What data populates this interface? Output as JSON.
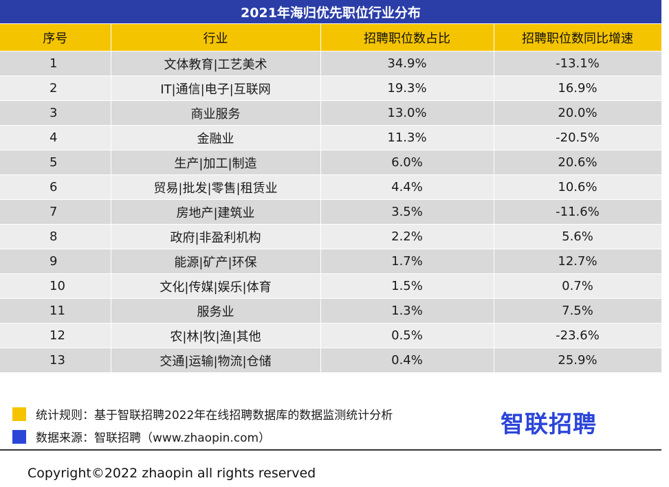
{
  "title": "2021年海归优先职位行业分布",
  "chart_data": {
    "type": "table",
    "title": "2021年海归优先职位行业分布",
    "columns": [
      "序号",
      "行业",
      "招聘职位数占比",
      "招聘职位数同比增速"
    ],
    "rows": [
      {
        "no": "1",
        "industry": "文体教育|工艺美术",
        "share": "34.9%",
        "growth": "-13.1%"
      },
      {
        "no": "2",
        "industry": "IT|通信|电子|互联网",
        "share": "19.3%",
        "growth": "16.9%"
      },
      {
        "no": "3",
        "industry": "商业服务",
        "share": "13.0%",
        "growth": "20.0%"
      },
      {
        "no": "4",
        "industry": "金融业",
        "share": "11.3%",
        "growth": "-20.5%"
      },
      {
        "no": "5",
        "industry": "生产|加工|制造",
        "share": "6.0%",
        "growth": "20.6%"
      },
      {
        "no": "6",
        "industry": "贸易|批发|零售|租赁业",
        "share": "4.4%",
        "growth": "10.6%"
      },
      {
        "no": "7",
        "industry": "房地产|建筑业",
        "share": "3.5%",
        "growth": "-11.6%"
      },
      {
        "no": "8",
        "industry": "政府|非盈利机构",
        "share": "2.2%",
        "growth": "5.6%"
      },
      {
        "no": "9",
        "industry": "能源|矿产|环保",
        "share": "1.7%",
        "growth": "12.7%"
      },
      {
        "no": "10",
        "industry": "文化|传媒|娱乐|体育",
        "share": "1.5%",
        "growth": "0.7%"
      },
      {
        "no": "11",
        "industry": "服务业",
        "share": "1.3%",
        "growth": "7.5%"
      },
      {
        "no": "12",
        "industry": "农|林|牧|渔|其他",
        "share": "0.5%",
        "growth": "-23.6%"
      },
      {
        "no": "13",
        "industry": "交通|运输|物流|仓储",
        "share": "0.4%",
        "growth": "25.9%"
      }
    ]
  },
  "watermark": "智联招聘",
  "legend": {
    "rule": "统计规则：基于智联招聘2022年在线招聘数据库的数据监测统计分析",
    "source": "数据来源：智联招聘（www.zhaopin.com）",
    "rule_color": "#f5c400",
    "source_color": "#2b45d9"
  },
  "brand": "智联招聘",
  "copyright": "Copyright©2022 zhaopin all rights reserved",
  "colors": {
    "title_bg": "#2b3ea8",
    "header_bg": "#f5c400",
    "row_odd": "#d9d9d9",
    "row_even": "#ededed",
    "brand": "#2b45d9"
  }
}
